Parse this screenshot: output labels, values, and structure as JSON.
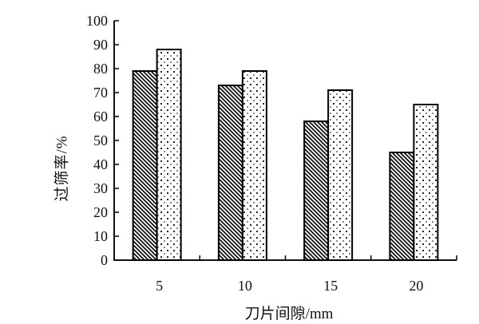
{
  "chart_data": {
    "type": "bar",
    "title": "",
    "xlabel": "刀片间隙/mm",
    "ylabel": "过筛率/%",
    "categories": [
      "5",
      "10",
      "15",
      "20"
    ],
    "series": [
      {
        "name": "hatched-series",
        "pattern": "diagonal-hatch",
        "values": [
          79,
          73,
          58,
          45
        ]
      },
      {
        "name": "dotted-series",
        "pattern": "dot-grid",
        "values": [
          88,
          79,
          71,
          65
        ]
      }
    ],
    "ylim": [
      0,
      100
    ],
    "ytick_step": 10,
    "y_tick_labels": [
      "0",
      "10",
      "20",
      "30",
      "40",
      "50",
      "60",
      "70",
      "80",
      "90",
      "100"
    ],
    "grid": false,
    "legend": "none",
    "colors": {
      "ink": "#111111",
      "background": "#ffffff",
      "dot_dark": "#222222",
      "dot_light": "#8a8a8a"
    }
  }
}
